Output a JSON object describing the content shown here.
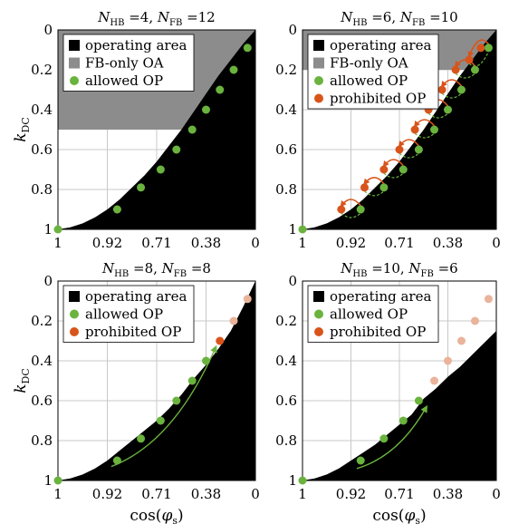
{
  "colors": {
    "operating": "#000000",
    "fb_only": "#8c8c8c",
    "allowed": "#6ab33e",
    "prohibited": "#d9541a",
    "prohibited_faded": "#eab39b",
    "grid": "#c8c8c8"
  },
  "chart_data": [
    {
      "type": "scatter",
      "title": "N_HB =4, N_FB =12",
      "title_parts": {
        "a": "N",
        "a_sub": "HB",
        "b": " =4, ",
        "c": "N",
        "c_sub": "FB",
        "d": " =12"
      },
      "xlabel": "",
      "ylabel": "k_DC",
      "ylabel_parts": {
        "main": "k",
        "sub": "DC"
      },
      "x_tick_labels": [
        "1",
        "0.92",
        "0.71",
        "0.38",
        "0"
      ],
      "y_tick_labels": [
        "0",
        "0.2",
        "0.4",
        "0.6",
        "0.8",
        "1"
      ],
      "ylim": [
        0,
        1
      ],
      "legend": [
        "operating area",
        "FB-only OA",
        "allowed OP"
      ],
      "fb_only_region_k_max": 0.5,
      "boundary": [
        [
          0,
          1
        ],
        [
          0.0625,
          0.99
        ],
        [
          0.125,
          0.97
        ],
        [
          0.1875,
          0.94
        ],
        [
          0.25,
          0.9
        ],
        [
          0.3125,
          0.85
        ],
        [
          0.375,
          0.79
        ],
        [
          0.4375,
          0.73
        ],
        [
          0.5,
          0.66
        ],
        [
          0.5625,
          0.58
        ],
        [
          0.625,
          0.5
        ],
        [
          0.6875,
          0.41
        ],
        [
          0.75,
          0.32
        ],
        [
          0.8125,
          0.23
        ],
        [
          0.875,
          0.15
        ],
        [
          0.9375,
          0.07
        ],
        [
          1,
          0
        ]
      ],
      "allowed_points": [
        [
          0,
          1
        ],
        [
          0.3,
          0.9
        ],
        [
          0.42,
          0.79
        ],
        [
          0.52,
          0.7
        ],
        [
          0.6,
          0.6
        ],
        [
          0.68,
          0.5
        ],
        [
          0.75,
          0.4
        ],
        [
          0.82,
          0.3
        ],
        [
          0.89,
          0.2
        ],
        [
          0.96,
          0.09
        ]
      ],
      "prohibited_points": [],
      "faded_points": [],
      "arcs": [],
      "trend_arrow": null
    },
    {
      "type": "scatter",
      "title": "N_HB =6, N_FB =10",
      "title_parts": {
        "a": "N",
        "a_sub": "HB",
        "b": " =6, ",
        "c": "N",
        "c_sub": "FB",
        "d": " =10"
      },
      "xlabel": "",
      "ylabel": "",
      "x_tick_labels": [
        "1",
        "0.92",
        "0.71",
        "0.38",
        "0"
      ],
      "y_tick_labels": [
        "0",
        "0.2",
        "0.4",
        "0.6",
        "0.8",
        "1"
      ],
      "ylim": [
        0,
        1
      ],
      "legend": [
        "operating area",
        "FB-only OA",
        "allowed OP",
        "prohibited OP"
      ],
      "fb_only_region_k_max": 0.2,
      "boundary": [
        [
          0,
          1
        ],
        [
          0.0625,
          0.99
        ],
        [
          0.125,
          0.97
        ],
        [
          0.1875,
          0.94
        ],
        [
          0.25,
          0.9
        ],
        [
          0.3125,
          0.85
        ],
        [
          0.375,
          0.79
        ],
        [
          0.4375,
          0.73
        ],
        [
          0.5,
          0.66
        ],
        [
          0.5625,
          0.58
        ],
        [
          0.625,
          0.5
        ],
        [
          0.6875,
          0.41
        ],
        [
          0.75,
          0.32
        ],
        [
          0.8125,
          0.23
        ],
        [
          0.875,
          0.15
        ],
        [
          0.9375,
          0.07
        ],
        [
          1,
          0
        ]
      ],
      "allowed_points": [
        [
          0,
          1
        ],
        [
          0.3,
          0.9
        ],
        [
          0.42,
          0.79
        ],
        [
          0.52,
          0.7
        ],
        [
          0.6,
          0.6
        ],
        [
          0.68,
          0.5
        ],
        [
          0.75,
          0.4
        ],
        [
          0.82,
          0.3
        ],
        [
          0.89,
          0.2
        ],
        [
          0.96,
          0.09
        ]
      ],
      "prohibited_points": [
        [
          0.2,
          0.9
        ],
        [
          0.32,
          0.79
        ],
        [
          0.42,
          0.7
        ],
        [
          0.5,
          0.6
        ],
        [
          0.58,
          0.5
        ],
        [
          0.65,
          0.4
        ],
        [
          0.72,
          0.3
        ],
        [
          0.79,
          0.2
        ],
        [
          0.86,
          0.15
        ],
        [
          0.92,
          0.09
        ]
      ],
      "faded_points": [],
      "arcs": [
        [
          0.3,
          0.9,
          0.2,
          0.9
        ],
        [
          0.42,
          0.79,
          0.32,
          0.79
        ],
        [
          0.52,
          0.7,
          0.42,
          0.7
        ],
        [
          0.6,
          0.6,
          0.5,
          0.6
        ],
        [
          0.68,
          0.5,
          0.58,
          0.5
        ],
        [
          0.75,
          0.4,
          0.65,
          0.4
        ],
        [
          0.82,
          0.3,
          0.72,
          0.3
        ],
        [
          0.89,
          0.2,
          0.79,
          0.2
        ],
        [
          0.96,
          0.09,
          0.86,
          0.15
        ]
      ],
      "trend_arrow": null
    },
    {
      "type": "scatter",
      "title": "N_HB =8, N_FB =8",
      "title_parts": {
        "a": "N",
        "a_sub": "HB",
        "b": " =8, ",
        "c": "N",
        "c_sub": "FB",
        "d": " =8"
      },
      "xlabel": "cos(φs)",
      "xlabel_parts": {
        "pre": "cos(",
        "main": "φ",
        "sub": "s",
        "post": ")"
      },
      "ylabel": "k_DC",
      "ylabel_parts": {
        "main": "k",
        "sub": "DC"
      },
      "x_tick_labels": [
        "1",
        "0.92",
        "0.71",
        "0.38",
        "0"
      ],
      "y_tick_labels": [
        "0",
        "0.2",
        "0.4",
        "0.6",
        "0.8",
        "1"
      ],
      "ylim": [
        0,
        1
      ],
      "legend": [
        "operating area",
        "allowed OP",
        "prohibited OP"
      ],
      "fb_only_region_k_max": 0,
      "boundary": [
        [
          0,
          1
        ],
        [
          0.0625,
          0.99
        ],
        [
          0.125,
          0.97
        ],
        [
          0.1875,
          0.94
        ],
        [
          0.25,
          0.9
        ],
        [
          0.3125,
          0.85
        ],
        [
          0.375,
          0.8
        ],
        [
          0.4375,
          0.75
        ],
        [
          0.5,
          0.7
        ],
        [
          0.5625,
          0.64
        ],
        [
          0.625,
          0.57
        ],
        [
          0.6875,
          0.49
        ],
        [
          0.75,
          0.42
        ],
        [
          0.8125,
          0.34
        ],
        [
          0.875,
          0.25
        ],
        [
          0.9375,
          0.13
        ],
        [
          1,
          0
        ]
      ],
      "allowed_points": [
        [
          0,
          1
        ],
        [
          0.3,
          0.9
        ],
        [
          0.42,
          0.79
        ],
        [
          0.52,
          0.7
        ],
        [
          0.6,
          0.6
        ],
        [
          0.68,
          0.5
        ],
        [
          0.75,
          0.4
        ]
      ],
      "prohibited_points": [
        [
          0.82,
          0.3
        ]
      ],
      "faded_points": [
        [
          0.89,
          0.2
        ],
        [
          0.96,
          0.09
        ]
      ],
      "arcs": [],
      "trend_arrow": [
        [
          0.27,
          0.93
        ],
        [
          0.8,
          0.33
        ]
      ]
    },
    {
      "type": "scatter",
      "title": "N_HB =10, N_FB =6",
      "title_parts": {
        "a": "N",
        "a_sub": "HB",
        "b": " =10, ",
        "c": "N",
        "c_sub": "FB",
        "d": " =6"
      },
      "xlabel": "cos(φs)",
      "xlabel_parts": {
        "pre": "cos(",
        "main": "φ",
        "sub": "s",
        "post": ")"
      },
      "ylabel": "",
      "x_tick_labels": [
        "1",
        "0.92",
        "0.71",
        "0.38",
        "0"
      ],
      "y_tick_labels": [
        "0",
        "0.2",
        "0.4",
        "0.6",
        "0.8",
        "1"
      ],
      "ylim": [
        0,
        1
      ],
      "legend": [
        "operating area",
        "allowed OP",
        "prohibited OP"
      ],
      "fb_only_region_k_max": 0,
      "boundary": [
        [
          0,
          1
        ],
        [
          0.0625,
          0.99
        ],
        [
          0.125,
          0.97
        ],
        [
          0.1875,
          0.94
        ],
        [
          0.25,
          0.9
        ],
        [
          0.3125,
          0.86
        ],
        [
          0.375,
          0.82
        ],
        [
          0.4375,
          0.77
        ],
        [
          0.5,
          0.72
        ],
        [
          0.5625,
          0.67
        ],
        [
          0.625,
          0.59
        ],
        [
          0.6875,
          0.54
        ],
        [
          0.75,
          0.48
        ],
        [
          0.8125,
          0.43
        ],
        [
          0.875,
          0.37
        ],
        [
          0.9375,
          0.31
        ],
        [
          1,
          0.25
        ]
      ],
      "allowed_points": [
        [
          0,
          1
        ],
        [
          0.3,
          0.9
        ],
        [
          0.42,
          0.79
        ],
        [
          0.52,
          0.7
        ],
        [
          0.6,
          0.6
        ]
      ],
      "prohibited_points": [],
      "faded_points": [
        [
          0.68,
          0.5
        ],
        [
          0.75,
          0.4
        ],
        [
          0.82,
          0.3
        ],
        [
          0.89,
          0.2
        ],
        [
          0.96,
          0.09
        ]
      ],
      "arcs": [],
      "trend_arrow": [
        [
          0.28,
          0.94
        ],
        [
          0.64,
          0.63
        ]
      ]
    }
  ]
}
